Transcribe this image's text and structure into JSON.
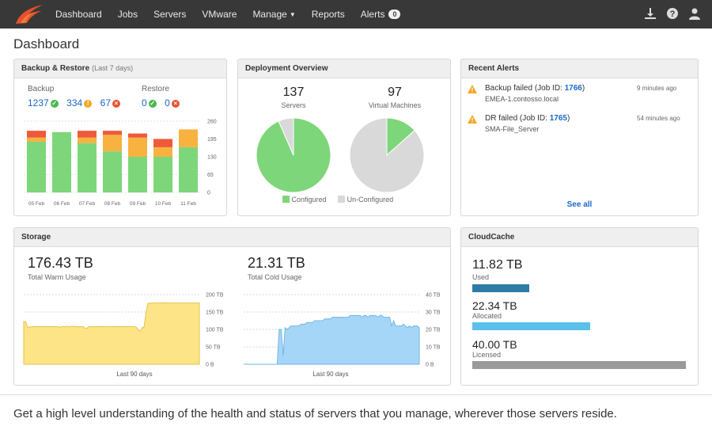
{
  "nav": {
    "items": [
      "Dashboard",
      "Jobs",
      "Servers",
      "VMware",
      "Manage",
      "Reports",
      "Alerts"
    ],
    "alerts_count": "0",
    "icons": [
      "download-icon",
      "help-icon",
      "user-icon"
    ]
  },
  "page": {
    "title": "Dashboard"
  },
  "backup": {
    "title": "Backup & Restore",
    "subtitle": "(Last 7 days)",
    "backup_label": "Backup",
    "restore_label": "Restore",
    "backup_success": "1237",
    "backup_warning": "334",
    "backup_failed": "67",
    "restore_success": "0",
    "restore_failed": "0"
  },
  "deploy": {
    "title": "Deployment Overview",
    "servers_count": "137",
    "servers_label": "Servers",
    "vms_count": "97",
    "vms_label": "Virtual Machines",
    "legend_configured": "Configured",
    "legend_unconfigured": "Un-Configured"
  },
  "recent_alerts": {
    "title": "Recent Alerts",
    "items": [
      {
        "prefix": "Backup failed (Job ID: ",
        "job": "1766",
        "suffix": ")",
        "host": "EMEA-1.contosso.local",
        "time": "9 minutes ago"
      },
      {
        "prefix": "DR failed (Job ID: ",
        "job": "1765",
        "suffix": ")",
        "host": "SMA-File_Server",
        "time": "54 minutes ago"
      }
    ],
    "see_all": "See all"
  },
  "storage": {
    "title": "Storage",
    "warm_value": "176.43 TB",
    "warm_label": "Total Warm Usage",
    "cold_value": "21.31 TB",
    "cold_label": "Total Cold Usage",
    "period_label": "Last 90 days"
  },
  "cloudcache": {
    "title": "CloudCache",
    "used_value": "11.82 TB",
    "used_label": "Used",
    "allocated_value": "22.34 TB",
    "allocated_label": "Allocated",
    "licensed_value": "40.00 TB",
    "licensed_label": "Licensed",
    "bars": {
      "used_fraction": 0.265,
      "allocated_fraction": 0.553,
      "licensed_fraction": 1.0
    },
    "colors": {
      "used": "#2e7ca6",
      "allocated": "#5bc0eb",
      "licensed": "#9a9a9a"
    }
  },
  "footer": {
    "text": "Get a high level understanding of the health and status of servers that you manage, wherever those servers reside."
  },
  "colors": {
    "success": "#7ed67a",
    "warning": "#f8b23f",
    "error": "#ef5a3a",
    "unconfigured": "#d9d9d9",
    "warm": "#fde486",
    "cold": "#a6d6f7"
  },
  "chart_data": [
    {
      "type": "bar",
      "title": "Backup & Restore (Last 7 days)",
      "categories": [
        "05 Feb",
        "06 Feb",
        "07 Feb",
        "08 Feb",
        "09 Feb",
        "10 Feb",
        "11 Feb"
      ],
      "series": [
        {
          "name": "Success",
          "values": [
            185,
            220,
            180,
            150,
            130,
            130,
            165
          ]
        },
        {
          "name": "Warning",
          "values": [
            15,
            0,
            20,
            60,
            70,
            35,
            65
          ]
        },
        {
          "name": "Failed",
          "values": [
            25,
            0,
            25,
            15,
            15,
            30,
            0
          ]
        }
      ],
      "ylim": [
        0,
        260
      ],
      "yticks": [
        "260",
        "195",
        "130",
        "65",
        "0"
      ]
    },
    {
      "type": "pie",
      "title": "Servers",
      "labels": [
        "Configured",
        "Un-Configured"
      ],
      "values": [
        128,
        9
      ]
    },
    {
      "type": "pie",
      "title": "Virtual Machines",
      "labels": [
        "Configured",
        "Un-Configured"
      ],
      "values": [
        13,
        84
      ]
    },
    {
      "type": "area",
      "title": "Total Warm Usage",
      "xlabel": "Last 90 days",
      "ylim": [
        0,
        200
      ],
      "yticks": [
        "200 TB",
        "150 TB",
        "100 TB",
        "50 TB",
        "0 B"
      ],
      "values": [
        123,
        122,
        105,
        107,
        108,
        108,
        108,
        108,
        108,
        108,
        108,
        108,
        108,
        108,
        108,
        108,
        108,
        108,
        106,
        108,
        108,
        108,
        109,
        108,
        109,
        109,
        108,
        108,
        108,
        108,
        108,
        104,
        103,
        108,
        108,
        108,
        108,
        108,
        108,
        108,
        108,
        108,
        108,
        107,
        108,
        108,
        108,
        108,
        108,
        108,
        108,
        108,
        108,
        108,
        109,
        108,
        108,
        107,
        98,
        95,
        105,
        108,
        150,
        175,
        175,
        176,
        176,
        176,
        176,
        176,
        176,
        177,
        176,
        176,
        176,
        176,
        176,
        176,
        176,
        176,
        176,
        176,
        176,
        176,
        176,
        176,
        176,
        176,
        176,
        176
      ]
    },
    {
      "type": "area",
      "title": "Total Cold Usage",
      "xlabel": "Last 90 days",
      "ylim": [
        0,
        40
      ],
      "yticks": [
        "40 TB",
        "30 TB",
        "20 TB",
        "10 TB",
        "0 B"
      ],
      "values": [
        0,
        0,
        0,
        0,
        0,
        0,
        0,
        0,
        0,
        0,
        0,
        0,
        0,
        0,
        0,
        0,
        0,
        0,
        20,
        20,
        5,
        21,
        20,
        21,
        22,
        22,
        22,
        22,
        22,
        23,
        23,
        23,
        24,
        24,
        24,
        24,
        25,
        25,
        25,
        25,
        25,
        26,
        26,
        26,
        26,
        27,
        27,
        27,
        27,
        27,
        27,
        27,
        27,
        27,
        28,
        28,
        28,
        28,
        28,
        28,
        27,
        28,
        28,
        27,
        28,
        28,
        28,
        28,
        27,
        28,
        28,
        27,
        27,
        27,
        27,
        22,
        25,
        22,
        22,
        22,
        22,
        23,
        22,
        21,
        22,
        21,
        22,
        22,
        22,
        21
      ]
    }
  ]
}
